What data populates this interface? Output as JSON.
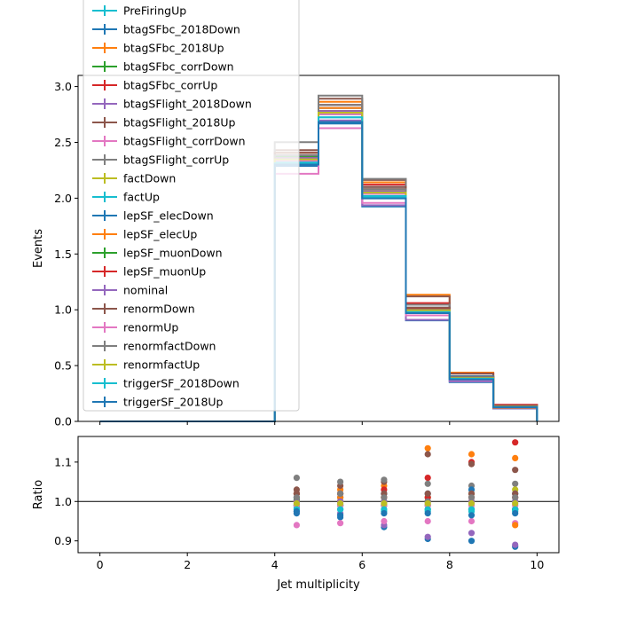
{
  "chart_data": [
    {
      "type": "line",
      "style": "step",
      "xlabel": "",
      "ylabel": "Events",
      "xlim": [
        -0.5,
        10.5
      ],
      "ylim": [
        0,
        3.1
      ],
      "yticks": [
        "0.0",
        "0.5",
        "1.0",
        "1.5",
        "2.0",
        "2.5",
        "3.0"
      ],
      "bin_edges": [
        0,
        1,
        2,
        3,
        4,
        5,
        6,
        7,
        8,
        9,
        10
      ],
      "nominal_values": [
        0,
        0,
        0,
        0,
        2.36,
        2.78,
        2.06,
        1.0,
        0.39,
        0.13
      ],
      "legend": {
        "placement": "upper-left",
        "entries": [
          {
            "name": "PreFiringUp",
            "color": "#17becf"
          },
          {
            "name": "btagSFbc_2018Down",
            "color": "#1f77b4"
          },
          {
            "name": "btagSFbc_2018Up",
            "color": "#ff7f0e"
          },
          {
            "name": "btagSFbc_corrDown",
            "color": "#2ca02c"
          },
          {
            "name": "btagSFbc_corrUp",
            "color": "#d62728"
          },
          {
            "name": "btagSFlight_2018Down",
            "color": "#9467bd"
          },
          {
            "name": "btagSFlight_2018Up",
            "color": "#8c564b"
          },
          {
            "name": "btagSFlight_corrDown",
            "color": "#e377c2"
          },
          {
            "name": "btagSFlight_corrUp",
            "color": "#7f7f7f"
          },
          {
            "name": "factDown",
            "color": "#bcbd22"
          },
          {
            "name": "factUp",
            "color": "#17becf"
          },
          {
            "name": "lepSF_elecDown",
            "color": "#1f77b4"
          },
          {
            "name": "lepSF_elecUp",
            "color": "#ff7f0e"
          },
          {
            "name": "lepSF_muonDown",
            "color": "#2ca02c"
          },
          {
            "name": "lepSF_muonUp",
            "color": "#d62728"
          },
          {
            "name": "nominal",
            "color": "#9467bd"
          },
          {
            "name": "renormDown",
            "color": "#8c564b"
          },
          {
            "name": "renormUp",
            "color": "#e377c2"
          },
          {
            "name": "renormfactDown",
            "color": "#7f7f7f"
          },
          {
            "name": "renormfactUp",
            "color": "#bcbd22"
          },
          {
            "name": "triggerSF_2018Down",
            "color": "#17becf"
          },
          {
            "name": "triggerSF_2018Up",
            "color": "#1f77b4"
          }
        ]
      }
    },
    {
      "type": "scatter",
      "xlabel": "Jet multiplicity",
      "ylabel": "Ratio",
      "xlim": [
        -0.5,
        10.5
      ],
      "ylim": [
        0.87,
        1.165
      ],
      "xticks": [
        "0",
        "2",
        "4",
        "6",
        "8",
        "10"
      ],
      "yticks": [
        "0.9",
        "1.0",
        "1.1"
      ],
      "reference_line": 1.0,
      "x": [
        4.5,
        5.5,
        6.5,
        7.5,
        8.5,
        9.5
      ],
      "series": [
        {
          "color": "#17becf",
          "values": [
            0.99,
            0.99,
            0.99,
            0.98,
            0.98,
            0.98
          ]
        },
        {
          "color": "#1f77b4",
          "values": [
            0.97,
            0.96,
            0.935,
            0.905,
            0.9,
            0.885
          ]
        },
        {
          "color": "#ff7f0e",
          "values": [
            1.02,
            1.03,
            1.04,
            1.135,
            1.12,
            1.11
          ]
        },
        {
          "color": "#2ca02c",
          "values": [
            0.99,
            0.99,
            0.99,
            0.99,
            0.98,
            0.98
          ]
        },
        {
          "color": "#d62728",
          "values": [
            1.02,
            1.02,
            1.03,
            1.06,
            1.1,
            1.15
          ]
        },
        {
          "color": "#9467bd",
          "values": [
            0.975,
            0.97,
            0.94,
            0.91,
            0.92,
            0.89
          ]
        },
        {
          "color": "#8c564b",
          "values": [
            1.03,
            1.04,
            1.05,
            1.12,
            1.095,
            1.08
          ]
        },
        {
          "color": "#e377c2",
          "values": [
            0.94,
            0.945,
            0.95,
            0.95,
            0.95,
            0.945
          ]
        },
        {
          "color": "#7f7f7f",
          "values": [
            1.06,
            1.05,
            1.055,
            1.045,
            1.04,
            1.045
          ]
        },
        {
          "color": "#bcbd22",
          "values": [
            1.0,
            1.0,
            1.0,
            1.01,
            1.02,
            1.03
          ]
        },
        {
          "color": "#17becf",
          "values": [
            0.985,
            0.98,
            0.975,
            0.975,
            0.975,
            0.975
          ]
        },
        {
          "color": "#1f77b4",
          "values": [
            1.01,
            1.01,
            1.02,
            1.02,
            1.03,
            1.02
          ]
        },
        {
          "color": "#ff7f0e",
          "values": [
            1.0,
            1.01,
            1.01,
            1.0,
            1.0,
            0.94
          ]
        },
        {
          "color": "#2ca02c",
          "values": [
            1.005,
            1.0,
            1.0,
            1.0,
            1.0,
            1.0
          ]
        },
        {
          "color": "#d62728",
          "values": [
            1.0,
            1.0,
            1.01,
            1.01,
            1.01,
            1.01
          ]
        },
        {
          "color": "#9467bd",
          "values": [
            1.0,
            1.0,
            1.0,
            1.0,
            1.0,
            1.0
          ]
        },
        {
          "color": "#8c564b",
          "values": [
            1.02,
            1.02,
            1.02,
            1.02,
            1.02,
            1.02
          ]
        },
        {
          "color": "#e377c2",
          "values": [
            0.99,
            0.99,
            0.99,
            0.99,
            0.99,
            0.99
          ]
        },
        {
          "color": "#7f7f7f",
          "values": [
            1.01,
            1.02,
            1.01,
            1.0,
            1.01,
            1.01
          ]
        },
        {
          "color": "#bcbd22",
          "values": [
            0.995,
            0.995,
            0.995,
            0.995,
            0.995,
            0.995
          ]
        },
        {
          "color": "#17becf",
          "values": [
            0.98,
            0.98,
            0.98,
            0.98,
            0.98,
            0.98
          ]
        },
        {
          "color": "#1f77b4",
          "values": [
            0.975,
            0.965,
            0.97,
            0.97,
            0.965,
            0.97
          ]
        }
      ]
    }
  ]
}
